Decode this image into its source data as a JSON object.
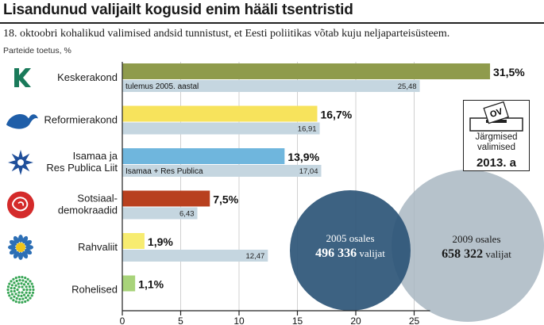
{
  "header": {
    "title": "Lisandunud valijailt kogusid enim hääli tsentristid",
    "subtitle": "18. oktoobri kohalikud valimised andsid tunnistust, et Eesti  poliitikas võtab kuju neljaparteisüsteem.",
    "unit": "Parteide toetus, %"
  },
  "next_election": {
    "label_line1": "Järgmised",
    "label_line2": "valimised",
    "year": "2013. a",
    "ballot_text": "OV"
  },
  "turnout": {
    "y2005": {
      "label": "2005 osales",
      "count": "496 336",
      "suffix": " valijat",
      "color": "#2c5577"
    },
    "y2009": {
      "label": "2009 osales",
      "count": "658 322",
      "suffix": " valijat",
      "color": "#a9b7c2"
    }
  },
  "colors": {
    "previous_bar": "#c5d6e0",
    "axis": "#222222",
    "grid": "#d0d0d0"
  },
  "chart_data": {
    "type": "bar",
    "orientation": "horizontal",
    "xlim": [
      0,
      31.5
    ],
    "ticks": [
      0,
      5,
      10,
      15,
      20,
      25
    ],
    "grid": true,
    "series": [
      {
        "name": "",
        "values": [
          31.5,
          16.7,
          13.9,
          7.5,
          1.9,
          1.1
        ],
        "labels": [
          "31,5%",
          "16,7%",
          "13,9%",
          "7,5%",
          "1,9%",
          "1,1%"
        ]
      },
      {
        "name": "tulemus 2005. aastal",
        "values": [
          25.48,
          16.91,
          17.04,
          6.43,
          12.47,
          null
        ],
        "labels": [
          "25,48",
          "16,91",
          "17,04",
          "6,43",
          "12,47",
          ""
        ]
      }
    ],
    "bars": [
      {
        "party": [
          "Keskerakond"
        ],
        "icon": "keskerakond-logo-icon",
        "color": "#8f9b4c",
        "current": 31.5,
        "current_label": "31,5%",
        "previous": 25.48,
        "previous_label": "25,48",
        "note": "tulemus 2005. aastal"
      },
      {
        "party": [
          "Reformierakond"
        ],
        "icon": "reformierakond-squirrel-icon",
        "color": "#f7e35c",
        "current": 16.7,
        "current_label": "16,7%",
        "previous": 16.91,
        "previous_label": "16,91",
        "note": ""
      },
      {
        "party": [
          "Isamaa ja",
          "Res Publica Liit"
        ],
        "icon": "irl-star-icon",
        "color": "#6fb6dd",
        "current": 13.9,
        "current_label": "13,9%",
        "previous": 17.04,
        "previous_label": "17,04",
        "note": "Isamaa + Res Publica"
      },
      {
        "party": [
          "Sotsiaal-",
          "demokraadid"
        ],
        "icon": "sde-rose-icon",
        "color": "#b8401f",
        "current": 7.5,
        "current_label": "7,5%",
        "previous": 6.43,
        "previous_label": "6,43",
        "note": ""
      },
      {
        "party": [
          "Rahvaliit"
        ],
        "icon": "rahvaliit-flower-icon",
        "color": "#f7ec70",
        "current": 1.9,
        "current_label": "1,9%",
        "previous": 12.47,
        "previous_label": "12,47",
        "note": ""
      },
      {
        "party": [
          "Rohelised"
        ],
        "icon": "rohelised-dots-icon",
        "color": "#a8d37a",
        "current": 1.1,
        "current_label": "1,1%",
        "previous": null,
        "previous_label": "",
        "note": ""
      }
    ]
  }
}
